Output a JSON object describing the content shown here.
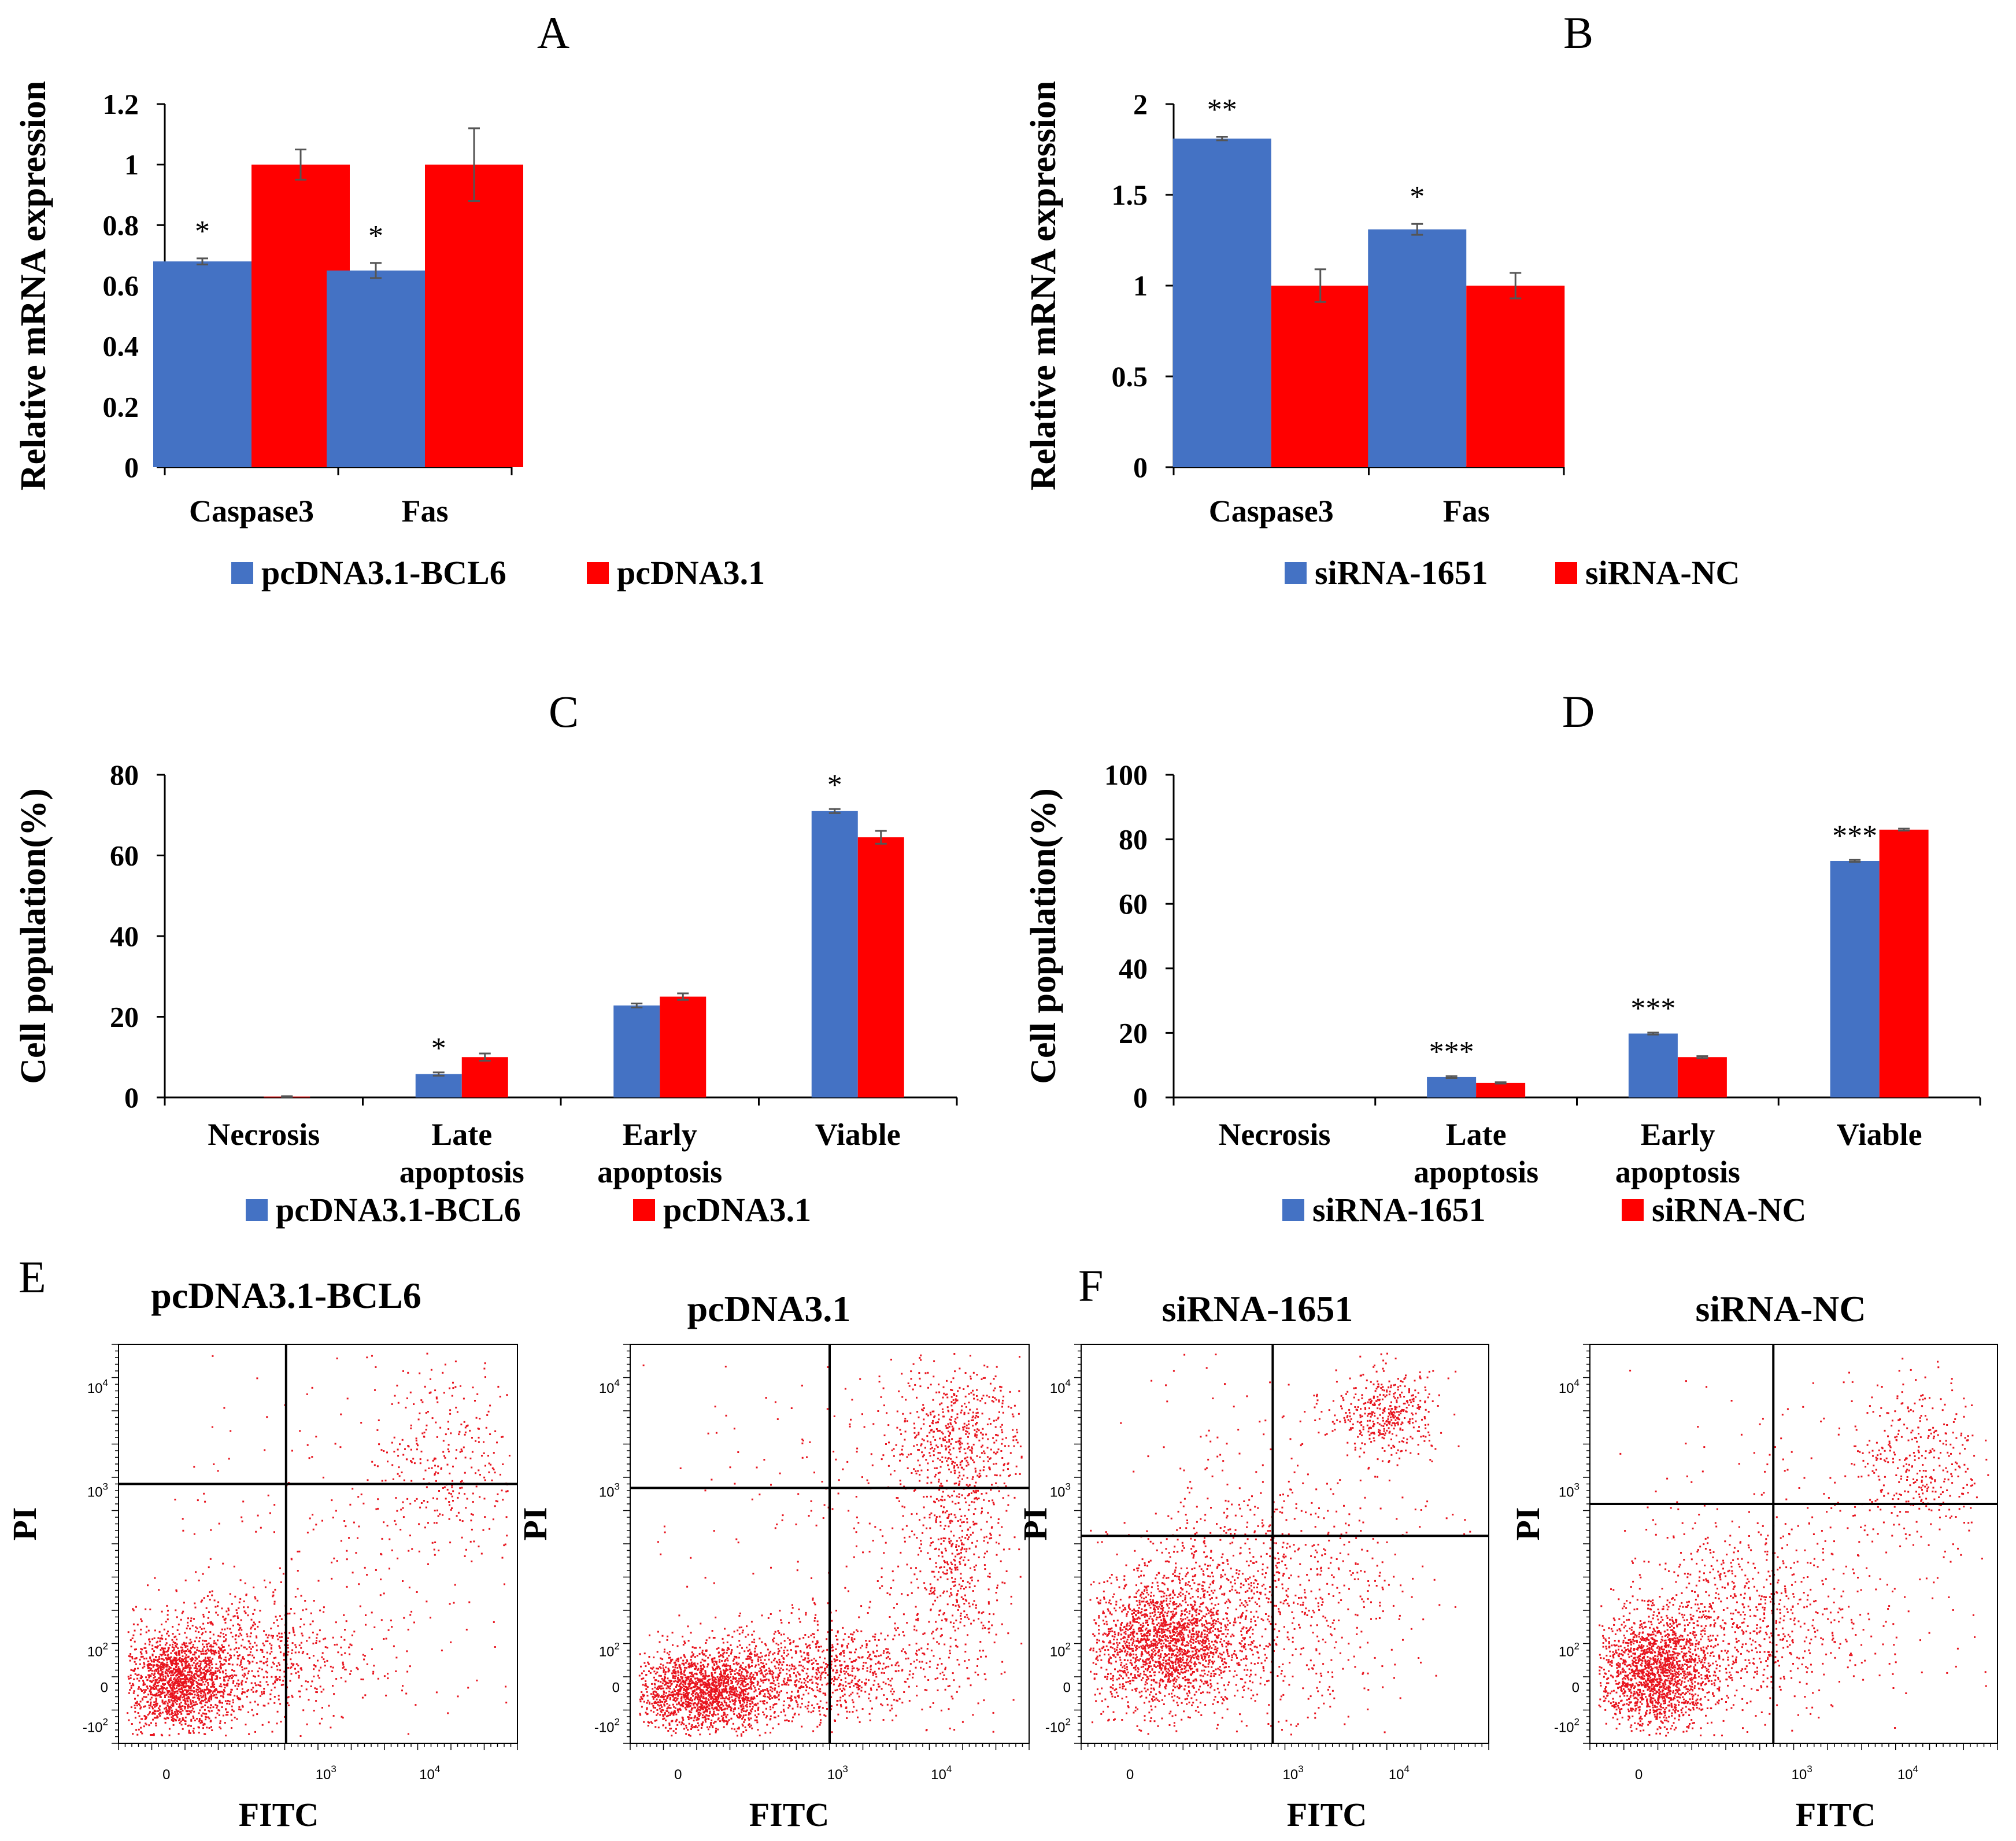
{
  "colors": {
    "series_blue": "#4472C4",
    "series_red": "#FF0000",
    "dots": "#E8141E",
    "axis": "#000000"
  },
  "panels": [
    {
      "label": "A"
    },
    {
      "label": "B"
    },
    {
      "label": "C"
    },
    {
      "label": "D"
    },
    {
      "label": "E"
    },
    {
      "label": "F"
    }
  ],
  "chart_data": [
    {
      "panel": "A",
      "type": "bar",
      "ylabel": "Relative mRNA expression",
      "ylim": [
        0,
        1.2
      ],
      "yticks": [
        "0",
        "0.2",
        "0.4",
        "0.6",
        "0.8",
        "1",
        "1.2"
      ],
      "categories": [
        "Caspase3",
        "Fas"
      ],
      "series": [
        {
          "name": "pcDNA3.1-BCL6",
          "color": "#4472C4",
          "values": [
            0.68,
            0.65
          ],
          "errors": [
            0.01,
            0.025
          ]
        },
        {
          "name": "pcDNA3.1",
          "color": "#FF0000",
          "values": [
            1.0,
            1.0
          ],
          "errors": [
            0.05,
            0.12
          ]
        }
      ],
      "annotations": [
        {
          "category": 0,
          "series": 0,
          "text": "*"
        },
        {
          "category": 1,
          "series": 0,
          "text": "*"
        }
      ],
      "legend": "bottom"
    },
    {
      "panel": "B",
      "type": "bar",
      "ylabel": "Relative mRNA expression",
      "ylim": [
        0,
        2
      ],
      "yticks": [
        "0",
        "0.5",
        "1",
        "1.5",
        "2"
      ],
      "categories": [
        "Caspase3",
        "Fas"
      ],
      "series": [
        {
          "name": "siRNA-1651",
          "color": "#4472C4",
          "values": [
            1.81,
            1.31
          ],
          "errors": [
            0.01,
            0.03
          ]
        },
        {
          "name": "siRNA-NC",
          "color": "#FF0000",
          "values": [
            1.0,
            1.0
          ],
          "errors": [
            0.09,
            0.07
          ]
        }
      ],
      "annotations": [
        {
          "category": 0,
          "series": 0,
          "text": "**"
        },
        {
          "category": 1,
          "series": 0,
          "text": "*"
        }
      ],
      "legend": "bottom"
    },
    {
      "panel": "C",
      "type": "bar",
      "ylabel": "Cell population(%)",
      "ylim": [
        0,
        80
      ],
      "yticks": [
        "0",
        "20",
        "40",
        "60",
        "80"
      ],
      "categories": [
        [
          "Necrosis"
        ],
        [
          "Late",
          "apoptosis"
        ],
        [
          "Early",
          "apoptosis"
        ],
        [
          "Viable"
        ]
      ],
      "series": [
        {
          "name": "pcDNA3.1-BCL6",
          "color": "#4472C4",
          "values": [
            0,
            5.8,
            22.8,
            71
          ],
          "errors": [
            0,
            0.4,
            0.5,
            0.5
          ]
        },
        {
          "name": "pcDNA3.1",
          "color": "#FF0000",
          "values": [
            0.2,
            10,
            25,
            64.5
          ],
          "errors": [
            0.1,
            0.9,
            0.8,
            1.6
          ]
        }
      ],
      "annotations": [
        {
          "category": 1,
          "series": 0,
          "text": "*"
        },
        {
          "category": 3,
          "series": 0,
          "text": "*"
        }
      ],
      "legend": "bottom"
    },
    {
      "panel": "D",
      "type": "bar",
      "ylabel": "Cell population(%)",
      "ylim": [
        0,
        100
      ],
      "yticks": [
        "0",
        "20",
        "40",
        "60",
        "80",
        "100"
      ],
      "categories": [
        [
          "Necrosis"
        ],
        [
          "Late",
          "apoptosis"
        ],
        [
          "Early",
          "apoptosis"
        ],
        [
          "Viable"
        ]
      ],
      "series": [
        {
          "name": "siRNA-1651",
          "color": "#4472C4",
          "values": [
            0,
            6.3,
            19.8,
            73.3
          ],
          "errors": [
            0,
            0.3,
            0.3,
            0.3
          ]
        },
        {
          "name": "siRNA-NC",
          "color": "#FF0000",
          "values": [
            0,
            4.5,
            12.5,
            83
          ],
          "errors": [
            0,
            0.2,
            0.3,
            0.3
          ]
        }
      ],
      "annotations": [
        {
          "category": 1,
          "series": 0,
          "text": "***"
        },
        {
          "category": 2,
          "series": 0,
          "text": "***"
        },
        {
          "category": 3,
          "series": 0,
          "text": "***"
        }
      ],
      "legend": "bottom"
    },
    {
      "panel": "E",
      "type": "scatter",
      "title": "pcDNA3.1-BCL6",
      "xlabel": "FITC",
      "ylabel": "PI",
      "x_ticks": [
        "0",
        "10^3",
        "10^4"
      ],
      "y_ticks": [
        "-10^2",
        "0",
        "10^2",
        "10^3",
        "10^4"
      ],
      "quadrant_gate": {
        "x": 0.42,
        "y": 0.65
      },
      "populations": [
        {
          "cx": 0.15,
          "cy": 0.15,
          "sx": 0.07,
          "sy": 0.06,
          "n": 1500
        },
        {
          "cx": 0.3,
          "cy": 0.22,
          "sx": 0.15,
          "sy": 0.09,
          "n": 800
        },
        {
          "cx": 0.82,
          "cy": 0.72,
          "sx": 0.09,
          "sy": 0.12,
          "n": 300
        },
        {
          "cx": 0.6,
          "cy": 0.45,
          "sx": 0.25,
          "sy": 0.25,
          "n": 250
        }
      ]
    },
    {
      "panel": "E",
      "type": "scatter",
      "title": "pcDNA3.1",
      "xlabel": "FITC",
      "ylabel": "PI",
      "x_ticks": [
        "0",
        "10^3",
        "10^4"
      ],
      "y_ticks": [
        "-10^2",
        "0",
        "10^2",
        "10^3",
        "10^4"
      ],
      "quadrant_gate": {
        "x": 0.5,
        "y": 0.64
      },
      "populations": [
        {
          "cx": 0.18,
          "cy": 0.13,
          "sx": 0.09,
          "sy": 0.05,
          "n": 1700
        },
        {
          "cx": 0.45,
          "cy": 0.18,
          "sx": 0.16,
          "sy": 0.06,
          "n": 1000
        },
        {
          "cx": 0.82,
          "cy": 0.45,
          "sx": 0.06,
          "sy": 0.15,
          "n": 500
        },
        {
          "cx": 0.82,
          "cy": 0.78,
          "sx": 0.08,
          "sy": 0.08,
          "n": 500
        },
        {
          "cx": 0.6,
          "cy": 0.55,
          "sx": 0.22,
          "sy": 0.25,
          "n": 300
        }
      ]
    },
    {
      "panel": "F",
      "type": "scatter",
      "title": "siRNA-1651",
      "xlabel": "FITC",
      "ylabel": "PI",
      "x_ticks": [
        "0",
        "10^3",
        "10^4"
      ],
      "y_ticks": [
        "-10^2",
        "0",
        "10^2",
        "10^3",
        "10^4"
      ],
      "quadrant_gate": {
        "x": 0.47,
        "y": 0.52
      },
      "populations": [
        {
          "cx": 0.2,
          "cy": 0.25,
          "sx": 0.09,
          "sy": 0.08,
          "n": 1800
        },
        {
          "cx": 0.4,
          "cy": 0.35,
          "sx": 0.16,
          "sy": 0.13,
          "n": 900
        },
        {
          "cx": 0.75,
          "cy": 0.83,
          "sx": 0.06,
          "sy": 0.05,
          "n": 400
        },
        {
          "cx": 0.55,
          "cy": 0.55,
          "sx": 0.25,
          "sy": 0.25,
          "n": 300
        }
      ]
    },
    {
      "panel": "F",
      "type": "scatter",
      "title": "siRNA-NC",
      "xlabel": "FITC",
      "ylabel": "PI",
      "x_ticks": [
        "0",
        "10^3",
        "10^4"
      ],
      "y_ticks": [
        "-10^2",
        "0",
        "10^2",
        "10^3",
        "10^4"
      ],
      "quadrant_gate": {
        "x": 0.45,
        "y": 0.6
      },
      "populations": [
        {
          "cx": 0.16,
          "cy": 0.18,
          "sx": 0.07,
          "sy": 0.07,
          "n": 1700
        },
        {
          "cx": 0.35,
          "cy": 0.3,
          "sx": 0.14,
          "sy": 0.12,
          "n": 800
        },
        {
          "cx": 0.8,
          "cy": 0.72,
          "sx": 0.08,
          "sy": 0.1,
          "n": 350
        },
        {
          "cx": 0.6,
          "cy": 0.45,
          "sx": 0.25,
          "sy": 0.22,
          "n": 280
        }
      ]
    }
  ]
}
